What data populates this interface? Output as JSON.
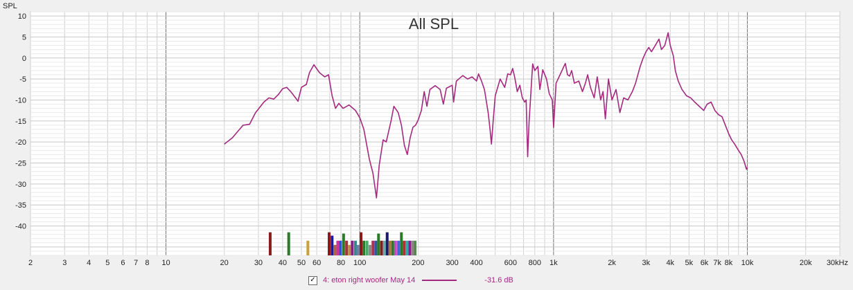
{
  "chart_data": {
    "type": "line",
    "title": "All SPL",
    "ylabel": "SPL",
    "xlabel": "",
    "x_scale": "log",
    "xlim": [
      2,
      30000
    ],
    "ylim": [
      -47,
      11
    ],
    "y_ticks": [
      10,
      5,
      0,
      -5,
      -10,
      -15,
      -20,
      -25,
      -30,
      -35,
      -40
    ],
    "y_tick_labels": [
      "10",
      "5",
      "0",
      "-5",
      "-10",
      "-15",
      "-20",
      "-25",
      "-30",
      "-35",
      "-40"
    ],
    "x_ticks": [
      2,
      3,
      4,
      5,
      6,
      7,
      8,
      10,
      20,
      30,
      40,
      50,
      60,
      80,
      100,
      200,
      300,
      400,
      600,
      800,
      1000,
      2000,
      3000,
      4000,
      5000,
      6000,
      7000,
      8000,
      10000,
      20000,
      30000
    ],
    "x_tick_labels": [
      "2",
      "3",
      "4",
      "5",
      "6",
      "7",
      "8",
      "10",
      "20",
      "30",
      "40",
      "50",
      "60",
      "80",
      "100",
      "200",
      "300",
      "400",
      "600",
      "800",
      "1k",
      "2k",
      "3k",
      "4k",
      "5k",
      "6k",
      "7k",
      "8k",
      "10k",
      "20k",
      "30kHz"
    ],
    "grid": true,
    "legend": "bottom-center",
    "series": [
      {
        "name": "4: eton right woofer May 14",
        "color": "#a4287f",
        "legend_value": "-31.6 dB",
        "checked": true,
        "points": [
          [
            20,
            -20.5
          ],
          [
            22,
            -19
          ],
          [
            25,
            -16
          ],
          [
            27,
            -15.8
          ],
          [
            29,
            -13
          ],
          [
            32,
            -10.5
          ],
          [
            34,
            -9.5
          ],
          [
            36,
            -9.8
          ],
          [
            38,
            -8.7
          ],
          [
            40,
            -7.3
          ],
          [
            42,
            -7.0
          ],
          [
            44,
            -8.0
          ],
          [
            47,
            -9.7
          ],
          [
            48,
            -10.3
          ],
          [
            50,
            -7.0
          ],
          [
            53,
            -6.3
          ],
          [
            55,
            -3.5
          ],
          [
            58,
            -1.6
          ],
          [
            62,
            -3.5
          ],
          [
            66,
            -4.5
          ],
          [
            69,
            -4.0
          ],
          [
            72,
            -9.0
          ],
          [
            75,
            -12.0
          ],
          [
            78,
            -10.8
          ],
          [
            82,
            -12.0
          ],
          [
            88,
            -11.2
          ],
          [
            95,
            -12.5
          ],
          [
            100,
            -14.2
          ],
          [
            105,
            -17.0
          ],
          [
            112,
            -24.0
          ],
          [
            117,
            -27.5
          ],
          [
            122,
            -33.3
          ],
          [
            126,
            -25.5
          ],
          [
            132,
            -19.5
          ],
          [
            137,
            -20.0
          ],
          [
            145,
            -15.0
          ],
          [
            150,
            -11.5
          ],
          [
            158,
            -13.0
          ],
          [
            164,
            -16.0
          ],
          [
            170,
            -20.8
          ],
          [
            176,
            -23.0
          ],
          [
            182,
            -19.0
          ],
          [
            188,
            -16.5
          ],
          [
            194,
            -16.0
          ],
          [
            200,
            -14.8
          ],
          [
            208,
            -12.5
          ],
          [
            215,
            -8.0
          ],
          [
            222,
            -11.5
          ],
          [
            230,
            -7.5
          ],
          [
            245,
            -6.6
          ],
          [
            260,
            -7.5
          ],
          [
            270,
            -11.0
          ],
          [
            280,
            -7.2
          ],
          [
            300,
            -6.5
          ],
          [
            305,
            -10.5
          ],
          [
            315,
            -5.5
          ],
          [
            340,
            -4.2
          ],
          [
            360,
            -5.0
          ],
          [
            380,
            -4.5
          ],
          [
            400,
            -5.5
          ],
          [
            410,
            -3.8
          ],
          [
            425,
            -5.5
          ],
          [
            440,
            -7.5
          ],
          [
            460,
            -13.0
          ],
          [
            470,
            -17.0
          ],
          [
            478,
            -20.5
          ],
          [
            488,
            -15.0
          ],
          [
            500,
            -9.0
          ],
          [
            530,
            -5.0
          ],
          [
            560,
            -7.0
          ],
          [
            580,
            -3.8
          ],
          [
            600,
            -4.0
          ],
          [
            615,
            -2.5
          ],
          [
            630,
            -4.5
          ],
          [
            650,
            -8.0
          ],
          [
            670,
            -6.5
          ],
          [
            690,
            -9.5
          ],
          [
            710,
            -10.5
          ],
          [
            722,
            -10.0
          ],
          [
            735,
            -23.5
          ],
          [
            748,
            -15.0
          ],
          [
            760,
            -10.0
          ],
          [
            780,
            -1.4
          ],
          [
            800,
            -3.0
          ],
          [
            830,
            -2.0
          ],
          [
            850,
            -7.5
          ],
          [
            880,
            -2.8
          ],
          [
            920,
            -5.0
          ],
          [
            950,
            -8.5
          ],
          [
            985,
            -10.0
          ],
          [
            1000,
            -16.5
          ],
          [
            1030,
            -6.0
          ],
          [
            1080,
            -4.0
          ],
          [
            1150,
            -1.3
          ],
          [
            1180,
            -4.0
          ],
          [
            1210,
            -4.3
          ],
          [
            1240,
            -3.0
          ],
          [
            1280,
            -6.0
          ],
          [
            1350,
            -5.5
          ],
          [
            1410,
            -8.0
          ],
          [
            1460,
            -6.0
          ],
          [
            1500,
            -4.0
          ],
          [
            1550,
            -7.0
          ],
          [
            1620,
            -9.5
          ],
          [
            1680,
            -4.5
          ],
          [
            1750,
            -10.0
          ],
          [
            1800,
            -8.0
          ],
          [
            1850,
            -14.5
          ],
          [
            1920,
            -5.0
          ],
          [
            2000,
            -10.0
          ],
          [
            2100,
            -7.5
          ],
          [
            2200,
            -13.0
          ],
          [
            2300,
            -9.5
          ],
          [
            2420,
            -10.0
          ],
          [
            2550,
            -8.0
          ],
          [
            2650,
            -6.0
          ],
          [
            2800,
            -2.0
          ],
          [
            2900,
            0.0
          ],
          [
            3000,
            1.5
          ],
          [
            3100,
            2.5
          ],
          [
            3200,
            1.5
          ],
          [
            3350,
            3.0
          ],
          [
            3500,
            4.5
          ],
          [
            3600,
            2.0
          ],
          [
            3750,
            3.0
          ],
          [
            3900,
            6.0
          ],
          [
            4000,
            3.0
          ],
          [
            4150,
            0.5
          ],
          [
            4250,
            -3.0
          ],
          [
            4400,
            -5.5
          ],
          [
            4600,
            -7.5
          ],
          [
            4850,
            -9.0
          ],
          [
            5100,
            -9.5
          ],
          [
            5350,
            -10.5
          ],
          [
            5650,
            -11.5
          ],
          [
            5950,
            -12.5
          ],
          [
            6200,
            -11.0
          ],
          [
            6500,
            -10.5
          ],
          [
            6800,
            -12.5
          ],
          [
            7100,
            -13.5
          ],
          [
            7400,
            -14.0
          ],
          [
            7700,
            -16.0
          ],
          [
            8000,
            -18.0
          ],
          [
            8300,
            -19.5
          ],
          [
            8600,
            -20.5
          ],
          [
            9000,
            -22.0
          ],
          [
            9300,
            -23.0
          ],
          [
            9600,
            -24.5
          ],
          [
            9900,
            -26.5
          ],
          [
            10000,
            -26.0
          ]
        ]
      }
    ],
    "bars": [
      {
        "x": 34.5,
        "top": -41.5,
        "color": "#8b1a1a"
      },
      {
        "x": 43,
        "top": -41.5,
        "color": "#2a7a2a"
      },
      {
        "x": 54,
        "top": -43.5,
        "color": "#c8a03c"
      },
      {
        "x": 69.5,
        "top": -41.5,
        "color": "#8b1a1a"
      },
      {
        "x": 72,
        "top": -42.3,
        "color": "#1a1a9b"
      },
      {
        "x": 74.5,
        "top": -44.5,
        "color": "#aa6644"
      },
      {
        "x": 77,
        "top": -43.5,
        "color": "#cc3399"
      },
      {
        "x": 79.5,
        "top": -43.5,
        "color": "#3355cc"
      },
      {
        "x": 82.5,
        "top": -41.8,
        "color": "#2a7a2a"
      },
      {
        "x": 85.5,
        "top": -43.5,
        "color": "#a8323c"
      },
      {
        "x": 88.5,
        "top": -44.5,
        "color": "#b8903c"
      },
      {
        "x": 91.5,
        "top": -43.5,
        "color": "#8b1a8b"
      },
      {
        "x": 95,
        "top": -43.5,
        "color": "#338888"
      },
      {
        "x": 98,
        "top": -44.5,
        "color": "#7777aa"
      },
      {
        "x": 101.5,
        "top": -41.5,
        "color": "#8b1a1a"
      },
      {
        "x": 105,
        "top": -43.5,
        "color": "#2a7a2a"
      },
      {
        "x": 109,
        "top": -43.5,
        "color": "#44aa66"
      },
      {
        "x": 113,
        "top": -44.5,
        "color": "#888888"
      },
      {
        "x": 117,
        "top": -43.5,
        "color": "#aa3355"
      },
      {
        "x": 121,
        "top": -43.5,
        "color": "#3355aa"
      },
      {
        "x": 125,
        "top": -41.8,
        "color": "#2a7a2a"
      },
      {
        "x": 129.5,
        "top": -43.5,
        "color": "#8b1a1a"
      },
      {
        "x": 134,
        "top": -43.5,
        "color": "#66aaaa"
      },
      {
        "x": 138.5,
        "top": -41.5,
        "color": "#1a1a6b"
      },
      {
        "x": 143,
        "top": -43.5,
        "color": "#aa7733"
      },
      {
        "x": 148,
        "top": -43.5,
        "color": "#2a7a2a"
      },
      {
        "x": 153,
        "top": -43.5,
        "color": "#cc44cc"
      },
      {
        "x": 158.5,
        "top": -43.5,
        "color": "#4466cc"
      },
      {
        "x": 164,
        "top": -41.5,
        "color": "#2a7a2a"
      },
      {
        "x": 169.5,
        "top": -43.5,
        "color": "#aa3333"
      },
      {
        "x": 175,
        "top": -43.5,
        "color": "#33aaaa"
      },
      {
        "x": 181,
        "top": -43.5,
        "color": "#8b1a8b"
      },
      {
        "x": 187,
        "top": -43.5,
        "color": "#888888"
      },
      {
        "x": 193,
        "top": -43.5,
        "color": "#558855"
      }
    ]
  }
}
